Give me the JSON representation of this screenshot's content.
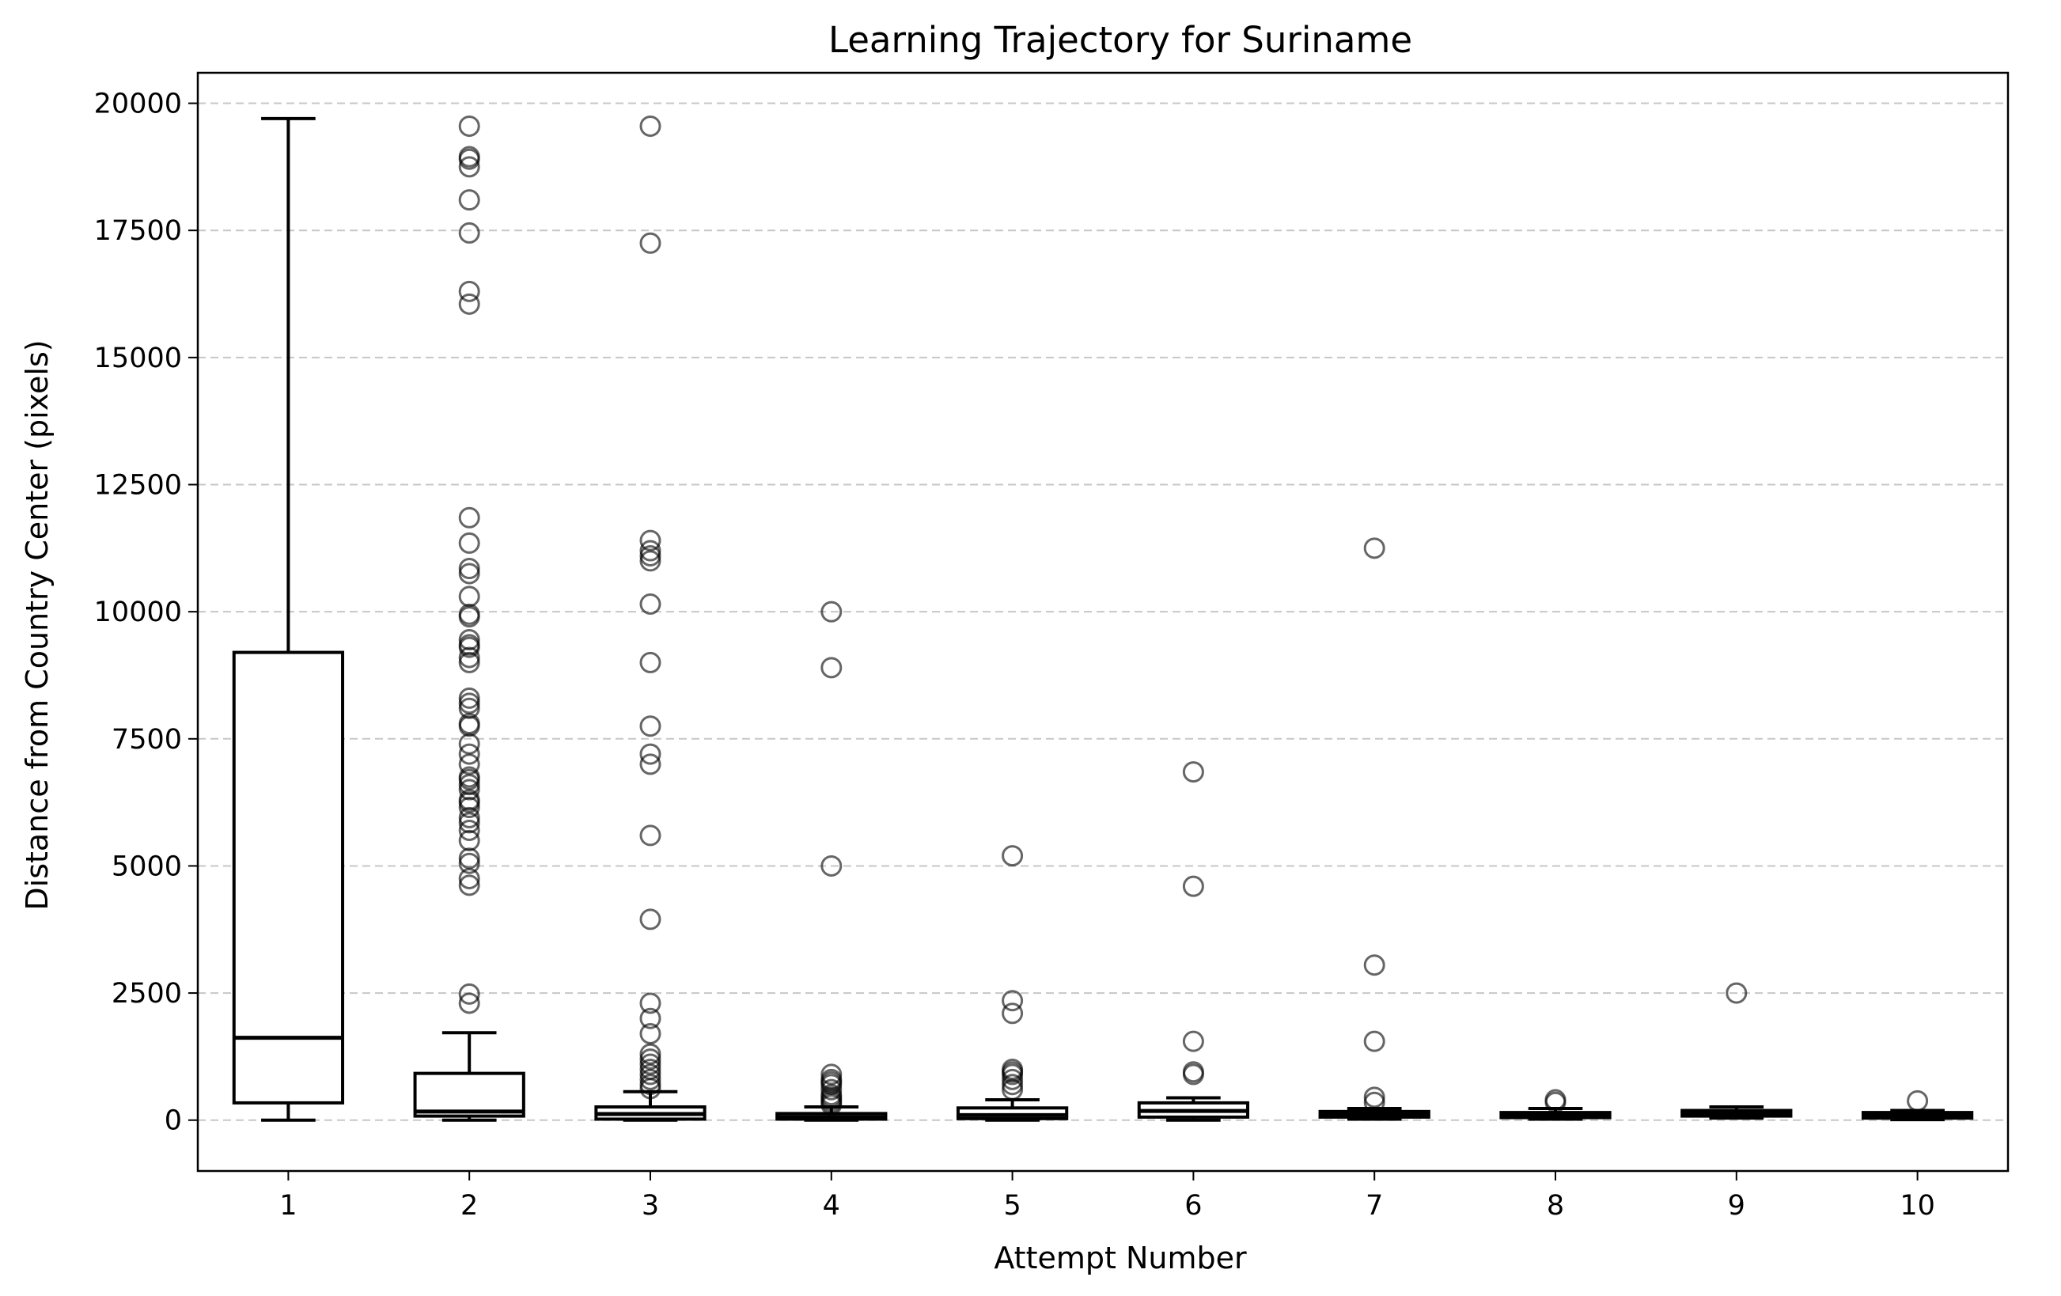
{
  "chart_data": {
    "type": "box",
    "title": "Learning Trajectory for Suriname",
    "xlabel": "Attempt Number",
    "ylabel": "Distance from Country Center (pixels)",
    "categories": [
      "1",
      "2",
      "3",
      "4",
      "5",
      "6",
      "7",
      "8",
      "9",
      "10"
    ],
    "ylim": [
      -1000,
      20600
    ],
    "yticks": [
      0,
      2500,
      5000,
      7500,
      10000,
      12500,
      15000,
      17500,
      20000
    ],
    "grid": "y-dashed",
    "boxes": [
      {
        "category": "1",
        "whisker_low": 0,
        "q1": 340,
        "median": 1620,
        "q3": 9200,
        "whisker_high": 19700,
        "outliers": []
      },
      {
        "category": "2",
        "whisker_low": 0,
        "q1": 80,
        "median": 170,
        "q3": 920,
        "whisker_high": 1720,
        "outliers": [
          2300,
          2480,
          4620,
          4750,
          5050,
          5150,
          5500,
          5700,
          5850,
          5950,
          6150,
          6250,
          6300,
          6500,
          6600,
          6700,
          6750,
          7000,
          7200,
          7400,
          7750,
          7800,
          8100,
          8200,
          8300,
          9000,
          9100,
          9300,
          9350,
          9450,
          9900,
          9950,
          10300,
          10750,
          10850,
          11350,
          11850,
          16050,
          16300,
          17450,
          18100,
          18750,
          18900,
          18950,
          19550
        ]
      },
      {
        "category": "3",
        "whisker_low": 0,
        "q1": 20,
        "median": 120,
        "q3": 260,
        "whisker_high": 560,
        "outliers": [
          620,
          700,
          800,
          900,
          1000,
          1100,
          1200,
          1300,
          1700,
          2000,
          2300,
          3950,
          5600,
          7000,
          7200,
          7750,
          9000,
          10150,
          11000,
          11100,
          11200,
          11400,
          17250,
          19550
        ]
      },
      {
        "category": "4",
        "whisker_low": 0,
        "q1": 20,
        "median": 60,
        "q3": 130,
        "whisker_high": 260,
        "outliers": [
          300,
          350,
          400,
          450,
          500,
          600,
          700,
          750,
          800,
          900,
          5000,
          8900,
          10000
        ]
      },
      {
        "category": "5",
        "whisker_low": 0,
        "q1": 30,
        "median": 100,
        "q3": 240,
        "whisker_high": 400,
        "outliers": [
          600,
          700,
          800,
          900,
          950,
          1000,
          2100,
          2350,
          5200
        ]
      },
      {
        "category": "6",
        "whisker_low": 0,
        "q1": 60,
        "median": 180,
        "q3": 340,
        "whisker_high": 440,
        "outliers": [
          900,
          950,
          1550,
          4600,
          6850
        ]
      },
      {
        "category": "7",
        "whisker_low": 20,
        "q1": 60,
        "median": 110,
        "q3": 170,
        "whisker_high": 230,
        "outliers": [
          350,
          450,
          1550,
          3050,
          11250
        ]
      },
      {
        "category": "8",
        "whisker_low": 20,
        "q1": 50,
        "median": 100,
        "q3": 150,
        "whisker_high": 230,
        "outliers": [
          350,
          400
        ]
      },
      {
        "category": "9",
        "whisker_low": 40,
        "q1": 80,
        "median": 130,
        "q3": 190,
        "whisker_high": 260,
        "outliers": [
          2500
        ]
      },
      {
        "category": "10",
        "whisker_low": 10,
        "q1": 40,
        "median": 90,
        "q3": 150,
        "whisker_high": 190,
        "outliers": [
          380
        ]
      }
    ]
  }
}
